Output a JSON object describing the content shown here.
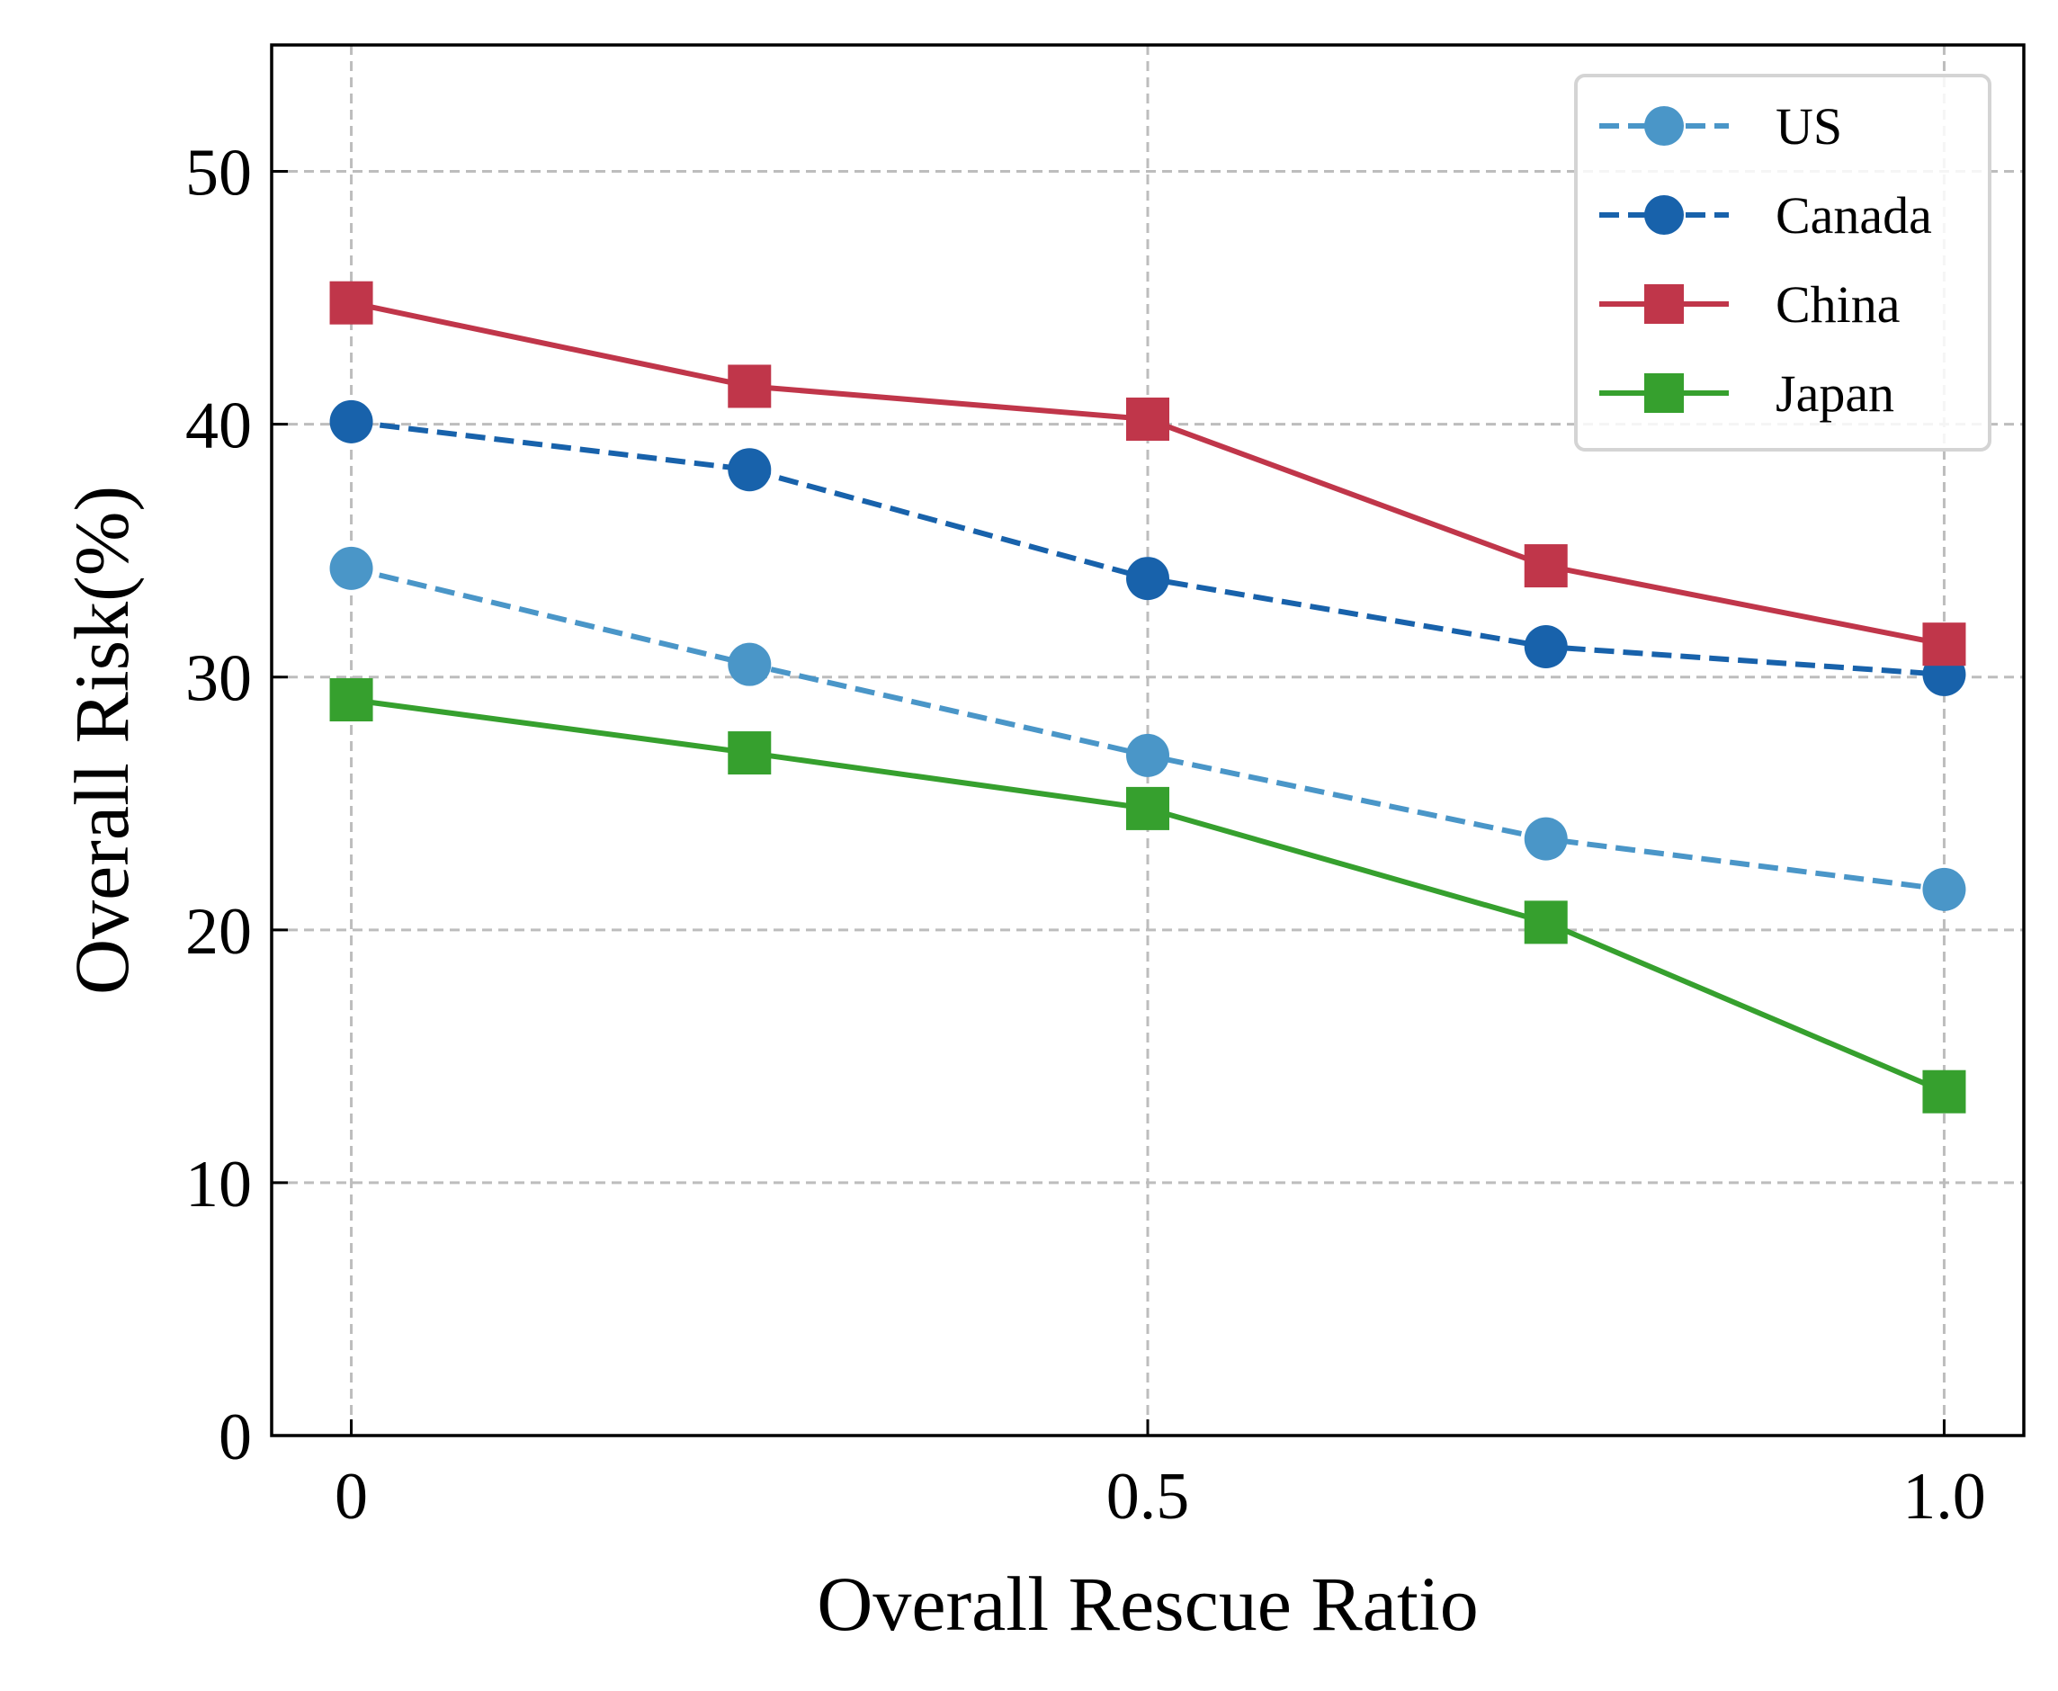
{
  "chart_data": {
    "type": "line",
    "title": "",
    "xlabel": "Overall Rescue Ratio",
    "ylabel": "Overall Risk(%)",
    "xlim": [
      -0.05,
      1.05
    ],
    "ylim": [
      0,
      55
    ],
    "xticks": [
      0,
      0.5,
      1.0
    ],
    "xtick_labels": [
      "0",
      "0.5",
      "1.0"
    ],
    "yticks": [
      0,
      10,
      20,
      30,
      40,
      50
    ],
    "ytick_labels": [
      "0",
      "10",
      "20",
      "30",
      "40",
      "50"
    ],
    "grid": true,
    "legend_position": "top-right",
    "x": [
      0,
      0.25,
      0.5,
      0.75,
      1.0
    ],
    "series": [
      {
        "name": "US",
        "values": [
          34.3,
          30.5,
          26.9,
          23.6,
          21.6
        ],
        "color": "#4a96c8",
        "dash": "dashed",
        "marker": "circle"
      },
      {
        "name": "Canada",
        "values": [
          40.1,
          38.2,
          33.9,
          31.2,
          30.1
        ],
        "color": "#1862ab",
        "dash": "dashed",
        "marker": "circle"
      },
      {
        "name": "China",
        "values": [
          44.8,
          41.5,
          40.2,
          34.4,
          31.3
        ],
        "color": "#c0364a",
        "dash": "solid",
        "marker": "square"
      },
      {
        "name": "Japan",
        "values": [
          29.1,
          27.0,
          24.8,
          20.3,
          13.6
        ],
        "color": "#36a02e",
        "dash": "solid",
        "marker": "square"
      }
    ]
  }
}
